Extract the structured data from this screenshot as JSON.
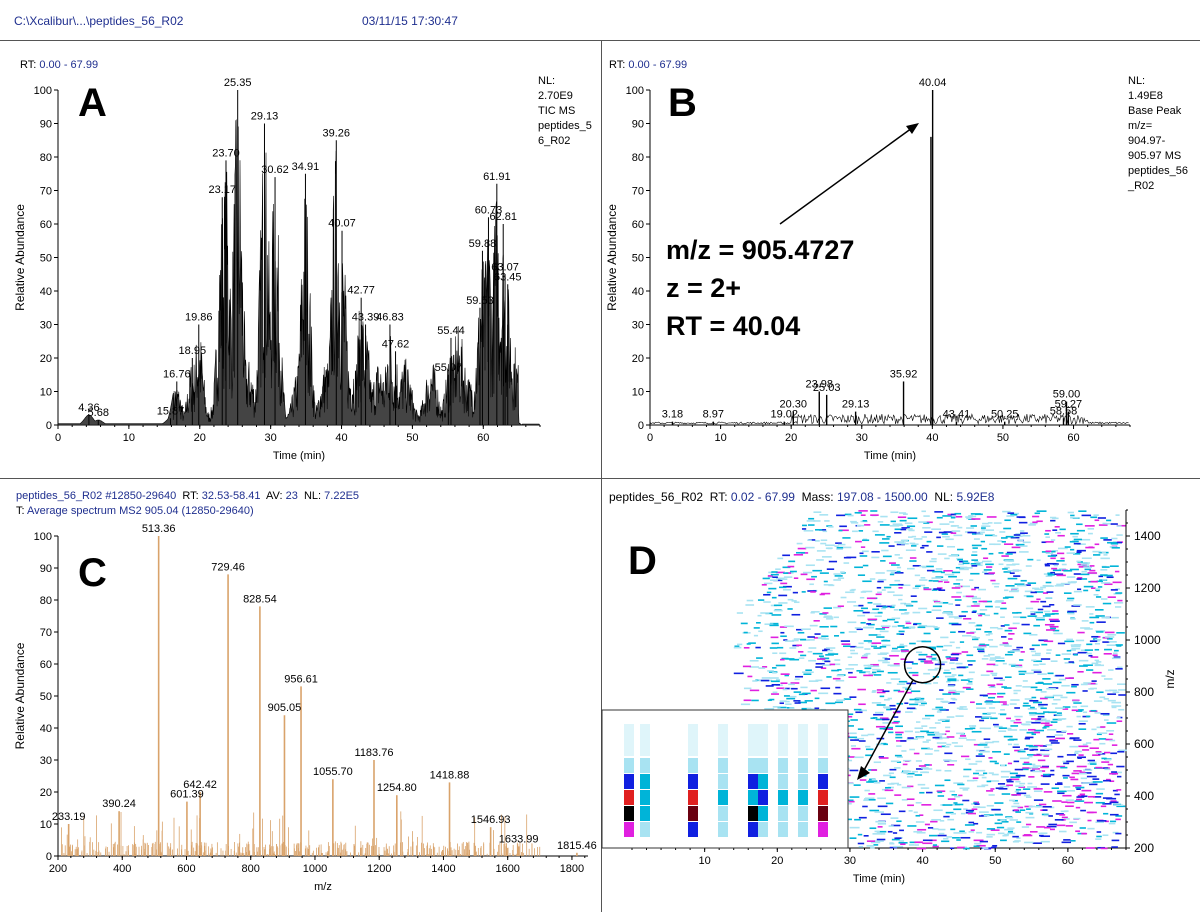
{
  "header": {
    "path": "C:\\Xcalibur\\...\\peptides_56_R02",
    "timestamp": "03/11/15 17:30:47"
  },
  "colors": {
    "header_blue": "#1f2f8f",
    "tic": "#000000",
    "ms2": "#d9a36b",
    "heat_light": "#a8e3f2",
    "heat_mid": "#00b4d8",
    "heat_blue": "#1020e0",
    "heat_red": "#e02020",
    "heat_magenta": "#e020e0",
    "arrow": "#000000"
  },
  "panels": {
    "A": {
      "letter": "A",
      "rt_label": "RT:",
      "rt_value": "0.00 - 67.99",
      "nl_lines": [
        "NL:",
        "2.70E9",
        "TIC  MS",
        "peptides_5",
        "6_R02"
      ]
    },
    "B": {
      "letter": "B",
      "rt_label": "RT:",
      "rt_value": "0.00 - 67.99",
      "nl_lines": [
        "NL:",
        "1.49E8",
        "Base Peak",
        "m/z=",
        "904.97-",
        "905.97  MS",
        "peptides_56",
        "_R02"
      ],
      "annotation": [
        "m/z = 905.4727",
        "z = 2+",
        "RT = 40.04"
      ]
    },
    "C": {
      "letter": "C",
      "title_line1": {
        "file": "peptides_56_R02",
        "scan": "#12850-29640",
        "rt_label": "RT:",
        "rt": "32.53-58.41",
        "av_label": "AV:",
        "av": "23",
        "nl_label": "NL:",
        "nl": "7.22E5"
      },
      "title_line2": {
        "prefix": "T:",
        "text": "Average spectrum MS2 905.04 (12850-29640)"
      }
    },
    "D": {
      "letter": "D",
      "title": {
        "file": "peptides_56_R02",
        "rt_label": "RT:",
        "rt": "0.02 - 67.99",
        "mass_label": "Mass:",
        "mass": "197.08 - 1500.00",
        "nl_label": "NL:",
        "nl": "5.92E8"
      }
    }
  },
  "chart_data": [
    {
      "id": "A",
      "type": "line",
      "title": "",
      "xlabel": "Time (min)",
      "ylabel": "Relative Abundance",
      "xlim": [
        0,
        68
      ],
      "ylim": [
        0,
        100
      ],
      "xticks": [
        0,
        10,
        20,
        30,
        40,
        50,
        60
      ],
      "yticks": [
        0,
        10,
        20,
        30,
        40,
        50,
        60,
        70,
        80,
        90,
        100
      ],
      "peaks": [
        {
          "x": 4.36,
          "y": 3,
          "label": "4.36"
        },
        {
          "x": 5.68,
          "y": 1.5,
          "label": "5.68"
        },
        {
          "x": 15.87,
          "y": 2,
          "label": "15.87"
        },
        {
          "x": 16.76,
          "y": 13,
          "label": "16.76"
        },
        {
          "x": 18.95,
          "y": 20,
          "label": "18.95"
        },
        {
          "x": 19.86,
          "y": 30,
          "label": "19.86"
        },
        {
          "x": 23.17,
          "y": 68,
          "label": "23.17"
        },
        {
          "x": 23.7,
          "y": 79,
          "label": "23.70"
        },
        {
          "x": 25.35,
          "y": 100,
          "label": "25.35"
        },
        {
          "x": 29.13,
          "y": 90,
          "label": "29.13"
        },
        {
          "x": 30.62,
          "y": 74,
          "label": "30.62"
        },
        {
          "x": 34.91,
          "y": 75,
          "label": "34.91"
        },
        {
          "x": 39.26,
          "y": 85,
          "label": "39.26"
        },
        {
          "x": 40.07,
          "y": 58,
          "label": "40.07"
        },
        {
          "x": 42.77,
          "y": 38,
          "label": "42.77"
        },
        {
          "x": 43.39,
          "y": 30,
          "label": "43.39"
        },
        {
          "x": 46.83,
          "y": 30,
          "label": "46.83"
        },
        {
          "x": 47.62,
          "y": 22,
          "label": "47.62"
        },
        {
          "x": 55.07,
          "y": 15,
          "label": "55.07"
        },
        {
          "x": 55.44,
          "y": 26,
          "label": "55.44"
        },
        {
          "x": 59.53,
          "y": 35,
          "label": "59.53"
        },
        {
          "x": 59.88,
          "y": 52,
          "label": "59.88"
        },
        {
          "x": 60.73,
          "y": 62,
          "label": "60.73"
        },
        {
          "x": 61.91,
          "y": 72,
          "label": "61.91"
        },
        {
          "x": 62.81,
          "y": 60,
          "label": "62.81"
        },
        {
          "x": 63.07,
          "y": 45,
          "label": "63.07"
        },
        {
          "x": 63.45,
          "y": 42,
          "label": "63.45"
        }
      ]
    },
    {
      "id": "B",
      "type": "line",
      "title": "",
      "xlabel": "Time (min)",
      "ylabel": "Relative Abundance",
      "xlim": [
        0,
        68
      ],
      "ylim": [
        0,
        100
      ],
      "xticks": [
        0,
        10,
        20,
        30,
        40,
        50,
        60
      ],
      "yticks": [
        0,
        10,
        20,
        30,
        40,
        50,
        60,
        70,
        80,
        90,
        100
      ],
      "peaks": [
        {
          "x": 3.18,
          "y": 1,
          "label": "3.18"
        },
        {
          "x": 8.97,
          "y": 1,
          "label": "8.97"
        },
        {
          "x": 19.02,
          "y": 1,
          "label": "19.02"
        },
        {
          "x": 20.3,
          "y": 4,
          "label": "20.30"
        },
        {
          "x": 23.98,
          "y": 10,
          "label": "23.98"
        },
        {
          "x": 25.03,
          "y": 9,
          "label": "25.03"
        },
        {
          "x": 29.13,
          "y": 4,
          "label": "29.13"
        },
        {
          "x": 35.92,
          "y": 13,
          "label": "35.92"
        },
        {
          "x": 40.04,
          "y": 100,
          "label": "40.04"
        },
        {
          "x": 43.41,
          "y": 1,
          "label": "43.41"
        },
        {
          "x": 50.25,
          "y": 1,
          "label": "50.25"
        },
        {
          "x": 58.58,
          "y": 2,
          "label": "58.58"
        },
        {
          "x": 59.0,
          "y": 7,
          "label": "59.00"
        },
        {
          "x": 59.27,
          "y": 4,
          "label": "59.27"
        }
      ]
    },
    {
      "id": "C",
      "type": "bar",
      "title": "",
      "xlabel": "m/z",
      "ylabel": "Relative Abundance",
      "xlim": [
        200,
        1850
      ],
      "ylim": [
        0,
        100
      ],
      "xticks": [
        200,
        400,
        600,
        800,
        1000,
        1200,
        1400,
        1600,
        1800
      ],
      "yticks": [
        0,
        10,
        20,
        30,
        40,
        50,
        60,
        70,
        80,
        90,
        100
      ],
      "peaks": [
        {
          "x": 233.19,
          "y": 10,
          "label": "233.19"
        },
        {
          "x": 390.24,
          "y": 14,
          "label": "390.24"
        },
        {
          "x": 513.36,
          "y": 100,
          "label": "513.36"
        },
        {
          "x": 601.39,
          "y": 17,
          "label": "601.39"
        },
        {
          "x": 642.42,
          "y": 20,
          "label": "642.42"
        },
        {
          "x": 729.46,
          "y": 88,
          "label": "729.46"
        },
        {
          "x": 828.54,
          "y": 78,
          "label": "828.54"
        },
        {
          "x": 905.05,
          "y": 44,
          "label": "905.05"
        },
        {
          "x": 956.61,
          "y": 53,
          "label": "956.61"
        },
        {
          "x": 1055.7,
          "y": 24,
          "label": "1055.70"
        },
        {
          "x": 1183.76,
          "y": 30,
          "label": "1183.76"
        },
        {
          "x": 1254.8,
          "y": 19,
          "label": "1254.80"
        },
        {
          "x": 1418.88,
          "y": 23,
          "label": "1418.88"
        },
        {
          "x": 1546.93,
          "y": 9,
          "label": "1546.93"
        },
        {
          "x": 1633.99,
          "y": 3,
          "label": "1633.99"
        },
        {
          "x": 1815.46,
          "y": 1,
          "label": "1815.46"
        }
      ]
    },
    {
      "id": "D",
      "type": "heatmap",
      "title": "",
      "xlabel": "Time (min)",
      "ylabel": "m/z",
      "xlim": [
        0,
        68
      ],
      "ylim": [
        200,
        1500
      ],
      "xticks": [
        10,
        20,
        30,
        40,
        50,
        60
      ],
      "yticks": [
        200,
        400,
        600,
        800,
        1000,
        1200,
        1400
      ],
      "highlight": {
        "x": 40,
        "y": 905
      }
    }
  ]
}
